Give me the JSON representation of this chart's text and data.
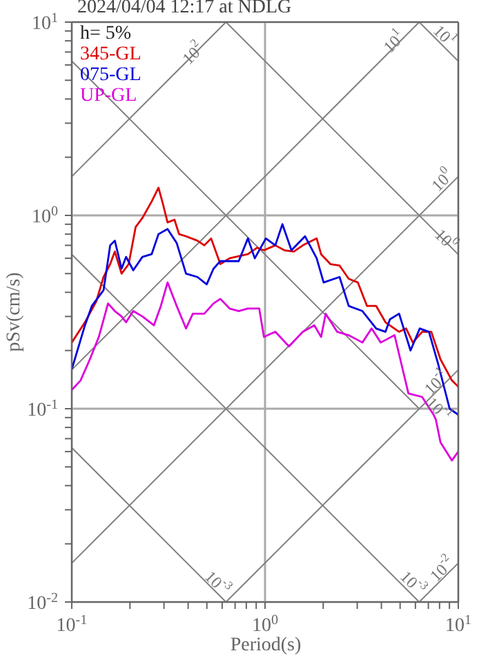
{
  "chart_data": {
    "type": "line",
    "title": "2024/04/04 12:17 at NDLG",
    "xlabel": "Period(s)",
    "ylabel": "pSv(cm/s)",
    "log": "xy",
    "grid": true,
    "legend": "top left",
    "xlim": [
      0.1,
      10
    ],
    "ylim": [
      0.01,
      10
    ],
    "xticks": [
      {
        "value": 0.1,
        "label": "10$^{-1}$"
      },
      {
        "value": 0.2,
        "label": null
      },
      {
        "value": 0.3,
        "label": null
      },
      {
        "value": 0.4,
        "label": null
      },
      {
        "value": 0.5,
        "label": null
      },
      {
        "value": 0.6,
        "label": null
      },
      {
        "value": 0.7,
        "label": null
      },
      {
        "value": 0.8,
        "label": null
      },
      {
        "value": 0.9,
        "label": null
      },
      {
        "value": 1,
        "label": "10$^{0}$"
      },
      {
        "value": 2,
        "label": null
      },
      {
        "value": 3,
        "label": null
      },
      {
        "value": 4,
        "label": null
      },
      {
        "value": 5,
        "label": null
      },
      {
        "value": 6,
        "label": null
      },
      {
        "value": 7,
        "label": null
      },
      {
        "value": 8,
        "label": null
      },
      {
        "value": 9,
        "label": null
      },
      {
        "value": 10,
        "label": "10$^{1}$"
      }
    ],
    "yticks": [
      {
        "value": 0.01,
        "label": "10$^{-2}$"
      },
      {
        "value": 0.02,
        "label": null
      },
      {
        "value": 0.03,
        "label": null
      },
      {
        "value": 0.04,
        "label": null
      },
      {
        "value": 0.05,
        "label": null
      },
      {
        "value": 0.06,
        "label": null
      },
      {
        "value": 0.07,
        "label": null
      },
      {
        "value": 0.08,
        "label": null
      },
      {
        "value": 0.09,
        "label": null
      },
      {
        "value": 0.1,
        "label": "10$^{-1}$"
      },
      {
        "value": 0.2,
        "label": null
      },
      {
        "value": 0.3,
        "label": null
      },
      {
        "value": 0.4,
        "label": null
      },
      {
        "value": 0.5,
        "label": null
      },
      {
        "value": 0.6,
        "label": null
      },
      {
        "value": 0.7,
        "label": null
      },
      {
        "value": 0.8,
        "label": null
      },
      {
        "value": 0.9,
        "label": null
      },
      {
        "value": 1,
        "label": "10$^{0}$"
      },
      {
        "value": 2,
        "label": null
      },
      {
        "value": 3,
        "label": null
      },
      {
        "value": 4,
        "label": null
      },
      {
        "value": 5,
        "label": null
      },
      {
        "value": 6,
        "label": null
      },
      {
        "value": 7,
        "label": null
      },
      {
        "value": 8,
        "label": null
      },
      {
        "value": 9,
        "label": null
      },
      {
        "value": 10,
        "label": "10$^{1}$"
      }
    ],
    "series": [
      {
        "color": "#808080",
        "x": [
          0.1,
          0.628
        ],
        "values": [
          1.59,
          10
        ]
      },
      {
        "color": "#808080",
        "x": [
          0.1,
          6.28
        ],
        "values": [
          0.159,
          10
        ]
      },
      {
        "color": "#808080",
        "x": [
          0.1,
          10
        ],
        "values": [
          0.0159,
          1.59
        ]
      },
      {
        "color": "#808080",
        "x": [
          0.628,
          10
        ],
        "values": [
          0.01,
          0.159
        ]
      },
      {
        "color": "#808080",
        "x": [
          6.28,
          10
        ],
        "values": [
          0.01,
          0.0159
        ]
      },
      {
        "color": "#808080",
        "x": [
          6.28,
          10
        ],
        "values": [
          10,
          6.28
        ]
      },
      {
        "color": "#808080",
        "x": [
          0.628,
          10
        ],
        "values": [
          10,
          0.628
        ]
      },
      {
        "color": "#808080",
        "x": [
          0.1,
          6.28
        ],
        "values": [
          6.28,
          0.1
        ]
      },
      {
        "color": "#808080",
        "x": [
          0.1,
          6.28
        ],
        "values": [
          0.628,
          0.01
        ]
      },
      {
        "color": "#808080",
        "x": [
          0.1,
          0.628
        ],
        "values": [
          0.0628,
          0.01
        ]
      },
      {
        "name": "345-GL",
        "color": "#dd0000",
        "x": [
          0.1,
          0.117,
          0.134,
          0.146,
          0.158,
          0.167,
          0.181,
          0.197,
          0.214,
          0.232,
          0.259,
          0.281,
          0.296,
          0.313,
          0.34,
          0.359,
          0.39,
          0.447,
          0.485,
          0.526,
          0.587,
          0.655,
          0.815,
          0.91,
          0.987,
          1.13,
          1.26,
          1.41,
          1.57,
          1.85,
          1.95,
          2.18,
          2.43,
          2.71,
          3.02,
          3.37,
          3.76,
          4.2,
          4.94,
          5.37,
          5.82,
          6.5,
          7.25,
          8.09,
          9.27,
          10
        ],
        "values": [
          0.22,
          0.28,
          0.36,
          0.48,
          0.56,
          0.65,
          0.5,
          0.56,
          0.87,
          0.97,
          1.18,
          1.39,
          1.15,
          0.92,
          0.95,
          0.8,
          0.78,
          0.74,
          0.7,
          0.76,
          0.56,
          0.6,
          0.63,
          0.68,
          0.66,
          0.7,
          0.66,
          0.65,
          0.7,
          0.76,
          0.63,
          0.56,
          0.55,
          0.47,
          0.45,
          0.34,
          0.34,
          0.28,
          0.25,
          0.26,
          0.22,
          0.25,
          0.25,
          0.18,
          0.14,
          0.13
        ]
      },
      {
        "name": "075-GL",
        "color": "#0000dd",
        "x": [
          0.1,
          0.117,
          0.127,
          0.146,
          0.158,
          0.167,
          0.181,
          0.191,
          0.208,
          0.232,
          0.259,
          0.281,
          0.313,
          0.349,
          0.39,
          0.447,
          0.499,
          0.541,
          0.587,
          0.731,
          0.815,
          0.885,
          1.01,
          1.13,
          1.23,
          1.37,
          1.61,
          1.85,
          2.01,
          2.43,
          2.71,
          3.19,
          3.76,
          4.2,
          4.43,
          4.94,
          5.66,
          6.32,
          7.05,
          7.87,
          9.02,
          10
        ],
        "values": [
          0.16,
          0.27,
          0.34,
          0.41,
          0.7,
          0.74,
          0.53,
          0.61,
          0.52,
          0.61,
          0.63,
          0.8,
          0.85,
          0.72,
          0.5,
          0.48,
          0.44,
          0.53,
          0.58,
          0.58,
          0.76,
          0.6,
          0.76,
          0.7,
          0.9,
          0.66,
          0.78,
          0.6,
          0.45,
          0.48,
          0.34,
          0.32,
          0.26,
          0.25,
          0.29,
          0.31,
          0.2,
          0.26,
          0.25,
          0.17,
          0.1,
          0.093
        ]
      },
      {
        "name": "UP-GL",
        "color": "#dd00dd",
        "x": [
          0.1,
          0.111,
          0.124,
          0.138,
          0.154,
          0.167,
          0.181,
          0.191,
          0.208,
          0.232,
          0.266,
          0.289,
          0.313,
          0.349,
          0.39,
          0.423,
          0.485,
          0.541,
          0.587,
          0.655,
          0.731,
          0.815,
          0.933,
          0.987,
          1.13,
          1.33,
          1.57,
          1.8,
          1.95,
          2.06,
          2.36,
          2.71,
          3.19,
          3.56,
          3.97,
          4.68,
          5.08,
          5.52,
          6.5,
          7.45,
          7.65,
          8.09,
          9.27,
          10
        ],
        "values": [
          0.125,
          0.14,
          0.18,
          0.235,
          0.35,
          0.32,
          0.3,
          0.28,
          0.32,
          0.3,
          0.27,
          0.34,
          0.45,
          0.34,
          0.26,
          0.31,
          0.31,
          0.35,
          0.37,
          0.33,
          0.32,
          0.33,
          0.33,
          0.235,
          0.25,
          0.21,
          0.25,
          0.27,
          0.235,
          0.31,
          0.25,
          0.24,
          0.22,
          0.26,
          0.22,
          0.24,
          0.17,
          0.12,
          0.115,
          0.093,
          0.088,
          0.067,
          0.054,
          0.06
        ]
      }
    ],
    "annotations": [
      "h= 5%",
      {
        "text": "10$^{2}$",
        "x": 0.43,
        "y": 6.8
      },
      {
        "text": "10$^{1}$",
        "x": 4.71,
        "y": 7.8
      },
      {
        "text": "10$^{1}$",
        "x": 8.36,
        "y": 8.4
      },
      {
        "text": "10$^{0}$",
        "x": 8.36,
        "y": 1.5
      },
      {
        "text": "10$^{0}$",
        "x": 8.5,
        "y": 0.74
      },
      {
        "text": "10$^{-1}$",
        "x": 7.8,
        "y": 0.135
      },
      {
        "text": "10$^{-1}$",
        "x": 7.8,
        "y": 0.098
      },
      {
        "text": "10$^{-3}$",
        "x": 0.558,
        "y": 0.0124
      },
      {
        "text": "10$^{-3}$",
        "x": 5.73,
        "y": 0.0124
      },
      {
        "text": "10$^{-2}$",
        "x": 8.36,
        "y": 0.0146
      }
    ]
  }
}
